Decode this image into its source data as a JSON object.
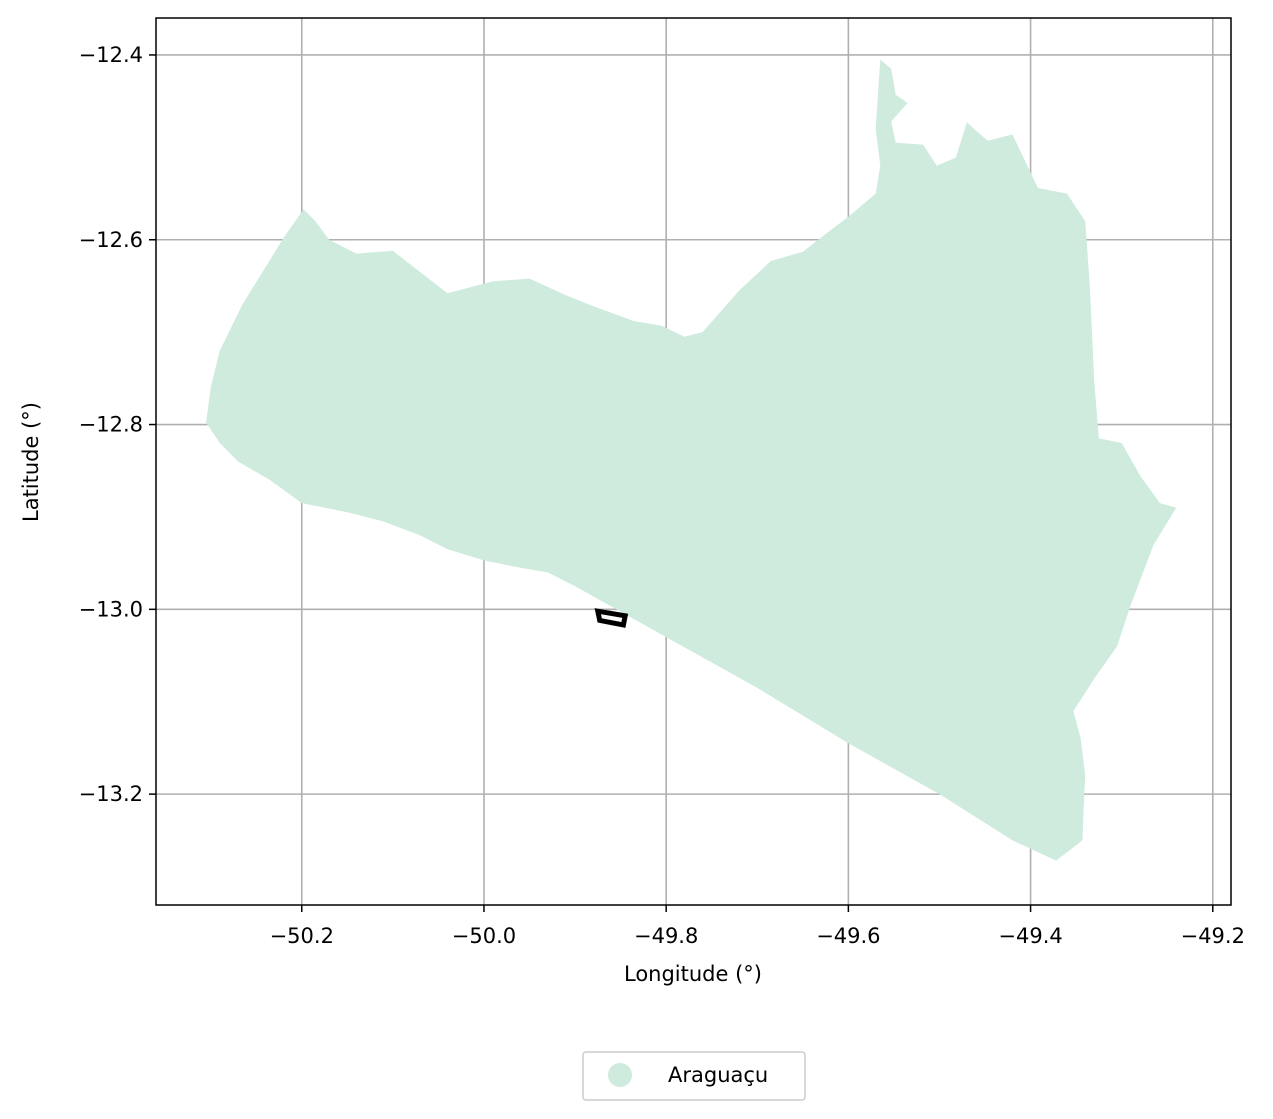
{
  "map": {
    "xlabel": "Longitude (°)",
    "ylabel": "Latitude (°)",
    "xlim": [
      -50.36,
      -49.18
    ],
    "ylim": [
      -13.32,
      -12.36
    ],
    "x_ticks": [
      -50.2,
      -50.0,
      -49.8,
      -49.6,
      -49.4,
      -49.2
    ],
    "y_ticks": [
      -12.4,
      -12.6,
      -12.8,
      -13.0,
      -13.2
    ],
    "x_tick_labels": [
      "−50.2",
      "−50.0",
      "−49.8",
      "−49.6",
      "−49.4",
      "−49.2"
    ],
    "y_tick_labels": [
      "−12.4",
      "−12.6",
      "−12.8",
      "−13.0",
      "−13.2"
    ],
    "grid": true,
    "region": {
      "name": "Araguaçu",
      "color": "#ceebdd",
      "outline": [
        [
          -49.565,
          -12.405
        ],
        [
          -49.553,
          -12.415
        ],
        [
          -49.548,
          -12.443
        ],
        [
          -49.535,
          -12.452
        ],
        [
          -49.553,
          -12.472
        ],
        [
          -49.548,
          -12.495
        ],
        [
          -49.518,
          -12.497
        ],
        [
          -49.503,
          -12.52
        ],
        [
          -49.482,
          -12.511
        ],
        [
          -49.47,
          -12.473
        ],
        [
          -49.447,
          -12.493
        ],
        [
          -49.42,
          -12.486
        ],
        [
          -49.392,
          -12.544
        ],
        [
          -49.36,
          -12.55
        ],
        [
          -49.34,
          -12.58
        ],
        [
          -49.335,
          -12.65
        ],
        [
          -49.33,
          -12.755
        ],
        [
          -49.325,
          -12.815
        ],
        [
          -49.3,
          -12.82
        ],
        [
          -49.28,
          -12.855
        ],
        [
          -49.258,
          -12.885
        ],
        [
          -49.24,
          -12.89
        ],
        [
          -49.265,
          -12.93
        ],
        [
          -49.29,
          -12.995
        ],
        [
          -49.305,
          -13.04
        ],
        [
          -49.33,
          -13.075
        ],
        [
          -49.353,
          -13.11
        ],
        [
          -49.345,
          -13.14
        ],
        [
          -49.34,
          -13.18
        ],
        [
          -49.342,
          -13.22
        ],
        [
          -49.343,
          -13.25
        ],
        [
          -49.372,
          -13.272
        ],
        [
          -49.42,
          -13.25
        ],
        [
          -49.5,
          -13.2
        ],
        [
          -49.6,
          -13.145
        ],
        [
          -49.7,
          -13.085
        ],
        [
          -49.8,
          -13.03
        ],
        [
          -49.9,
          -12.975
        ],
        [
          -49.93,
          -12.96
        ],
        [
          -49.96,
          -12.955
        ],
        [
          -50.0,
          -12.947
        ],
        [
          -50.04,
          -12.935
        ],
        [
          -50.07,
          -12.92
        ],
        [
          -50.11,
          -12.905
        ],
        [
          -50.15,
          -12.895
        ],
        [
          -50.2,
          -12.885
        ],
        [
          -50.235,
          -12.86
        ],
        [
          -50.27,
          -12.84
        ],
        [
          -50.29,
          -12.82
        ],
        [
          -50.305,
          -12.798
        ],
        [
          -50.3,
          -12.76
        ],
        [
          -50.29,
          -12.72
        ],
        [
          -50.265,
          -12.67
        ],
        [
          -50.24,
          -12.63
        ],
        [
          -50.22,
          -12.598
        ],
        [
          -50.198,
          -12.567
        ],
        [
          -50.185,
          -12.58
        ],
        [
          -50.17,
          -12.6
        ],
        [
          -50.14,
          -12.615
        ],
        [
          -50.1,
          -12.612
        ],
        [
          -50.07,
          -12.635
        ],
        [
          -50.04,
          -12.658
        ],
        [
          -49.99,
          -12.645
        ],
        [
          -49.95,
          -12.642
        ],
        [
          -49.91,
          -12.66
        ],
        [
          -49.88,
          -12.672
        ],
        [
          -49.835,
          -12.688
        ],
        [
          -49.805,
          -12.693
        ],
        [
          -49.78,
          -12.705
        ],
        [
          -49.76,
          -12.7
        ],
        [
          -49.72,
          -12.655
        ],
        [
          -49.685,
          -12.623
        ],
        [
          -49.65,
          -12.613
        ],
        [
          -49.62,
          -12.59
        ],
        [
          -49.6,
          -12.575
        ],
        [
          -49.57,
          -12.55
        ],
        [
          -49.565,
          -12.52
        ],
        [
          -49.57,
          -12.48
        ]
      ],
      "marker": {
        "outline": [
          [
            -49.875,
            -13.002
          ],
          [
            -49.845,
            -13.007
          ],
          [
            -49.847,
            -13.017
          ],
          [
            -49.873,
            -13.012
          ]
        ]
      }
    }
  },
  "legend": {
    "entries": [
      {
        "label": "Araguaçu",
        "color": "#ceebdd"
      }
    ]
  }
}
